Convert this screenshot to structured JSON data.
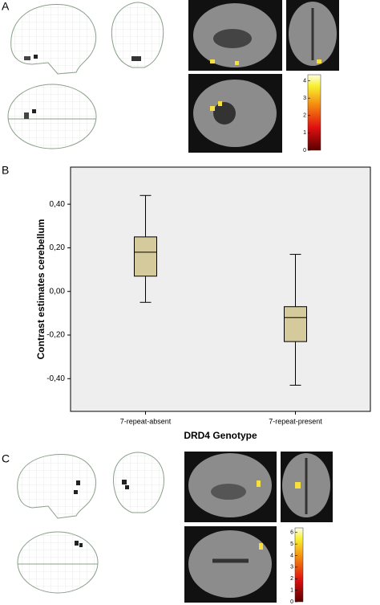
{
  "panel_a": {
    "label": "A",
    "colorbar_ticks": [
      0,
      1,
      2,
      3,
      4
    ],
    "colorbar_lim": [
      0,
      4.35
    ]
  },
  "chart_data": {
    "type": "box",
    "panel_label": "B",
    "x_label": "DRD4 Genotype",
    "y_label": "Contrast estimates cerebellum",
    "categories": [
      "7-repeat-absent",
      "7-repeat-present"
    ],
    "boxes": [
      {
        "whislo": -0.05,
        "q1": 0.07,
        "med": 0.18,
        "q3": 0.25,
        "whishi": 0.44
      },
      {
        "whislo": -0.43,
        "q1": -0.23,
        "med": -0.12,
        "q3": -0.07,
        "whishi": 0.17
      }
    ],
    "color": "#d4ca9c",
    "ylim": [
      -0.55,
      0.57
    ],
    "yticks": [
      {
        "value": -0.4,
        "label": "-0,40"
      },
      {
        "value": -0.2,
        "label": "-0,20"
      },
      {
        "value": 0,
        "label": "0,00"
      },
      {
        "value": 0.2,
        "label": "0,20"
      },
      {
        "value": 0.4,
        "label": "0,40"
      }
    ]
  },
  "panel_c": {
    "label": "C",
    "colorbar_ticks": [
      0,
      1,
      2,
      3,
      4,
      5,
      6
    ],
    "colorbar_lim": [
      0,
      6.4
    ]
  }
}
